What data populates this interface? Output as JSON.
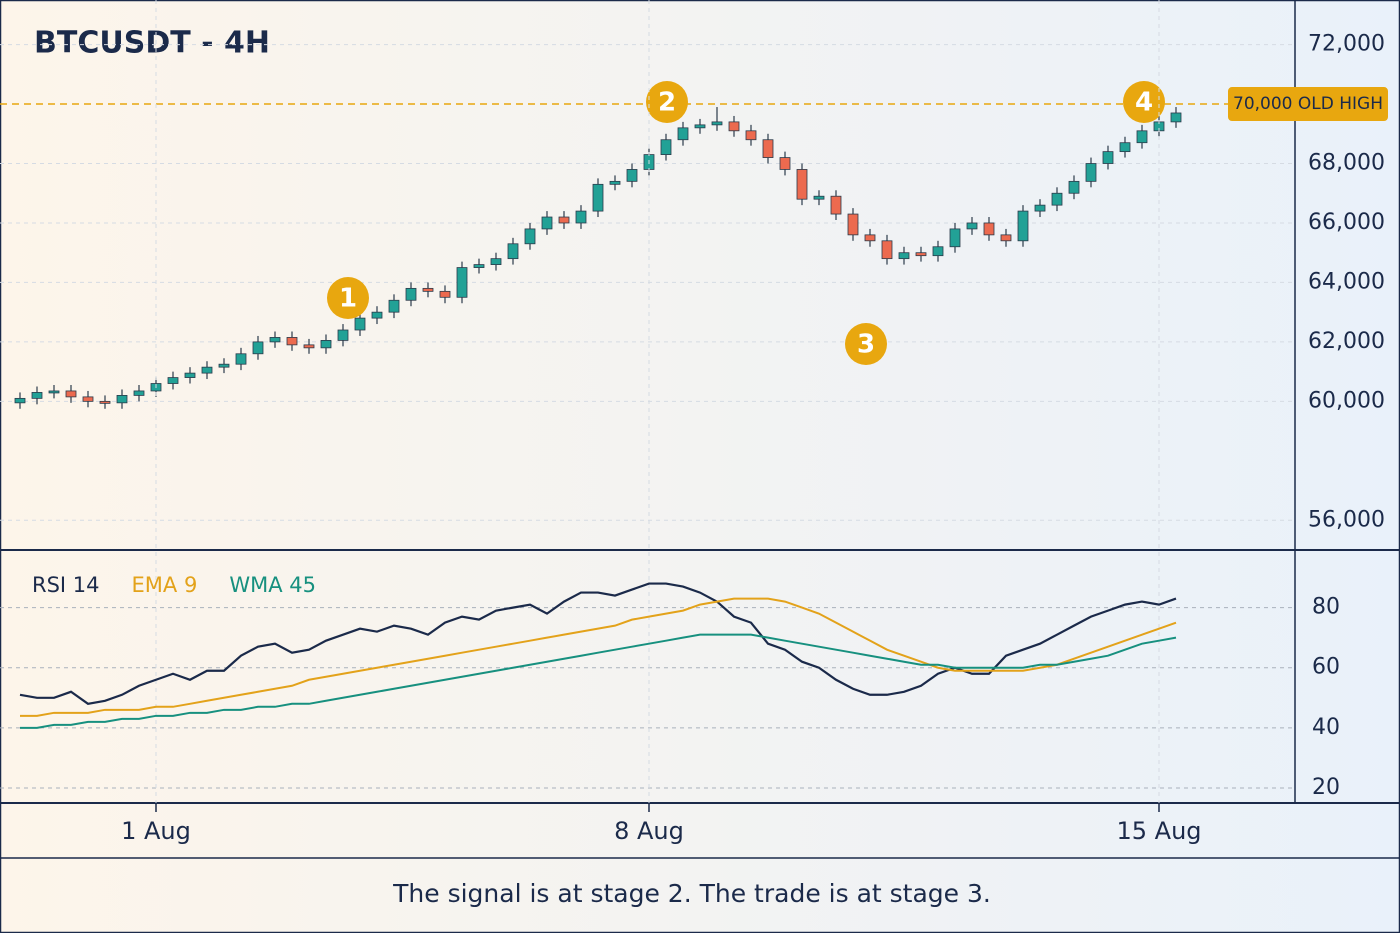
{
  "chart_data": [
    {
      "type": "candlestick",
      "title": "BTCUSDT - 4H",
      "up_color": "#22a196",
      "down_color": "#ec6a4f",
      "open": [
        59950,
        60100,
        60300,
        60350,
        60150,
        60000,
        59950,
        60200,
        60350,
        60600,
        60800,
        60950,
        61150,
        61250,
        61600,
        62000,
        62150,
        61900,
        61800,
        62050,
        62400,
        62800,
        63000,
        63400,
        63800,
        63700,
        63500,
        64500,
        64600,
        64800,
        65300,
        65800,
        66200,
        66000,
        66400,
        67300,
        67400,
        67800,
        68300,
        68800,
        69200,
        69300,
        69400,
        69100,
        68800,
        68200,
        67800,
        66800,
        66900,
        66300,
        65600,
        65400,
        64800,
        65000,
        64900,
        65200,
        65800,
        66000,
        65600,
        65400,
        66400,
        66600,
        67000,
        67400,
        68000,
        68400,
        68700,
        69100,
        69400
      ],
      "high": [
        60300,
        60500,
        60550,
        60550,
        60350,
        60200,
        60400,
        60550,
        60800,
        61000,
        61150,
        61350,
        61450,
        61800,
        62200,
        62350,
        62350,
        62100,
        62250,
        62600,
        63000,
        63200,
        63600,
        64000,
        64000,
        63900,
        64700,
        64800,
        65000,
        65500,
        66000,
        66400,
        66400,
        66600,
        67500,
        67600,
        68000,
        68500,
        69000,
        69400,
        69500,
        69900,
        69600,
        69300,
        69000,
        68400,
        68000,
        67100,
        67100,
        66500,
        65800,
        65600,
        65200,
        65200,
        65400,
        66000,
        66200,
        66200,
        65800,
        66600,
        66800,
        67200,
        67600,
        68200,
        68600,
        68900,
        69300,
        69600,
        69900
      ],
      "low": [
        59750,
        59900,
        60100,
        59950,
        59800,
        59750,
        59750,
        60000,
        60150,
        60400,
        60600,
        60750,
        60950,
        61050,
        61400,
        61800,
        61700,
        61600,
        61600,
        61850,
        62200,
        62600,
        62800,
        63200,
        63500,
        63300,
        63300,
        64300,
        64400,
        64600,
        65100,
        65600,
        65800,
        65800,
        66200,
        67100,
        67200,
        67600,
        68100,
        68600,
        69000,
        69100,
        68900,
        68600,
        68000,
        67600,
        66600,
        66600,
        66100,
        65400,
        65200,
        64600,
        64600,
        64700,
        64700,
        65000,
        65600,
        65400,
        65200,
        65200,
        66200,
        66400,
        66800,
        67200,
        67800,
        68200,
        68500,
        68900,
        69200
      ],
      "close": [
        60100,
        60300,
        60350,
        60150,
        60000,
        59950,
        60200,
        60350,
        60600,
        60800,
        60950,
        61150,
        61250,
        61600,
        62000,
        62150,
        61900,
        61800,
        62050,
        62400,
        62800,
        63000,
        63400,
        63800,
        63700,
        63500,
        64500,
        64600,
        64800,
        65300,
        65800,
        66200,
        66000,
        66400,
        67300,
        67400,
        67800,
        68300,
        68800,
        69200,
        69300,
        69400,
        69100,
        68800,
        68200,
        67800,
        66800,
        66900,
        66300,
        65600,
        65400,
        64800,
        65000,
        64900,
        65200,
        65800,
        66000,
        65600,
        65400,
        66400,
        66600,
        67000,
        67400,
        68000,
        68400,
        68700,
        69100,
        69400,
        69700
      ],
      "ylim": [
        55000,
        73500
      ],
      "yticks": [
        {
          "value": 72000,
          "label": "72,000"
        },
        {
          "value": 68000,
          "label": "68,000"
        },
        {
          "value": 66000,
          "label": "66,000"
        },
        {
          "value": 64000,
          "label": "64,000"
        },
        {
          "value": 62000,
          "label": "62,000"
        },
        {
          "value": 60000,
          "label": "60,000"
        },
        {
          "value": 56000,
          "label": "56,000"
        }
      ],
      "reference_line": {
        "value": 70000,
        "label": "70,000 OLD HIGH",
        "color": "#e8a70f"
      },
      "annotations": [
        "1",
        "2",
        "3",
        "4"
      ],
      "grid": true
    },
    {
      "type": "line",
      "categories": [
        null,
        null,
        null,
        null,
        null,
        null,
        null,
        null,
        "1 Aug",
        null,
        null,
        null,
        null,
        null,
        null,
        null,
        null,
        null,
        null,
        null,
        null,
        null,
        null,
        null,
        null,
        null,
        null,
        null,
        null,
        null,
        null,
        null,
        null,
        null,
        null,
        null,
        null,
        "8 Aug",
        null,
        null,
        null,
        null,
        null,
        null,
        null,
        null,
        null,
        null,
        null,
        null,
        null,
        null,
        null,
        null,
        null,
        null,
        null,
        null,
        null,
        null,
        null,
        null,
        null,
        null,
        null,
        null,
        null,
        "15 Aug",
        null
      ],
      "series": [
        {
          "name": "RSI 14",
          "color": "#1b2a4a",
          "values": [
            51,
            50,
            50,
            52,
            48,
            49,
            51,
            54,
            56,
            58,
            56,
            59,
            59,
            64,
            67,
            68,
            65,
            66,
            69,
            71,
            73,
            72,
            74,
            73,
            71,
            75,
            77,
            76,
            79,
            80,
            81,
            78,
            82,
            85,
            85,
            84,
            86,
            88,
            88,
            87,
            85,
            82,
            77,
            75,
            68,
            66,
            62,
            60,
            56,
            53,
            51,
            51,
            52,
            54,
            58,
            60,
            58,
            58,
            64,
            66,
            68,
            71,
            74,
            77,
            79,
            81,
            82,
            81,
            83
          ]
        },
        {
          "name": "EMA 9",
          "color": "#e3a21a",
          "values": [
            44,
            44,
            45,
            45,
            45,
            46,
            46,
            46,
            47,
            47,
            48,
            49,
            50,
            51,
            52,
            53,
            54,
            56,
            57,
            58,
            59,
            60,
            61,
            62,
            63,
            64,
            65,
            66,
            67,
            68,
            69,
            70,
            71,
            72,
            73,
            74,
            76,
            77,
            78,
            79,
            81,
            82,
            83,
            83,
            83,
            82,
            80,
            78,
            75,
            72,
            69,
            66,
            64,
            62,
            60,
            59,
            59,
            59,
            59,
            59,
            60,
            61,
            63,
            65,
            67,
            69,
            71,
            73,
            75
          ]
        },
        {
          "name": "WMA 45",
          "color": "#17907f",
          "values": [
            40,
            40,
            41,
            41,
            42,
            42,
            43,
            43,
            44,
            44,
            45,
            45,
            46,
            46,
            47,
            47,
            48,
            48,
            49,
            50,
            51,
            52,
            53,
            54,
            55,
            56,
            57,
            58,
            59,
            60,
            61,
            62,
            63,
            64,
            65,
            66,
            67,
            68,
            69,
            70,
            71,
            71,
            71,
            71,
            70,
            69,
            68,
            67,
            66,
            65,
            64,
            63,
            62,
            61,
            61,
            60,
            60,
            60,
            60,
            60,
            61,
            61,
            62,
            63,
            64,
            66,
            68,
            69,
            70
          ]
        }
      ],
      "ylim": [
        15,
        98.5
      ],
      "yticks": [
        80,
        60,
        40,
        20
      ],
      "grid": true
    }
  ],
  "caption": "The signal is at stage 2. The trade is at stage 3."
}
